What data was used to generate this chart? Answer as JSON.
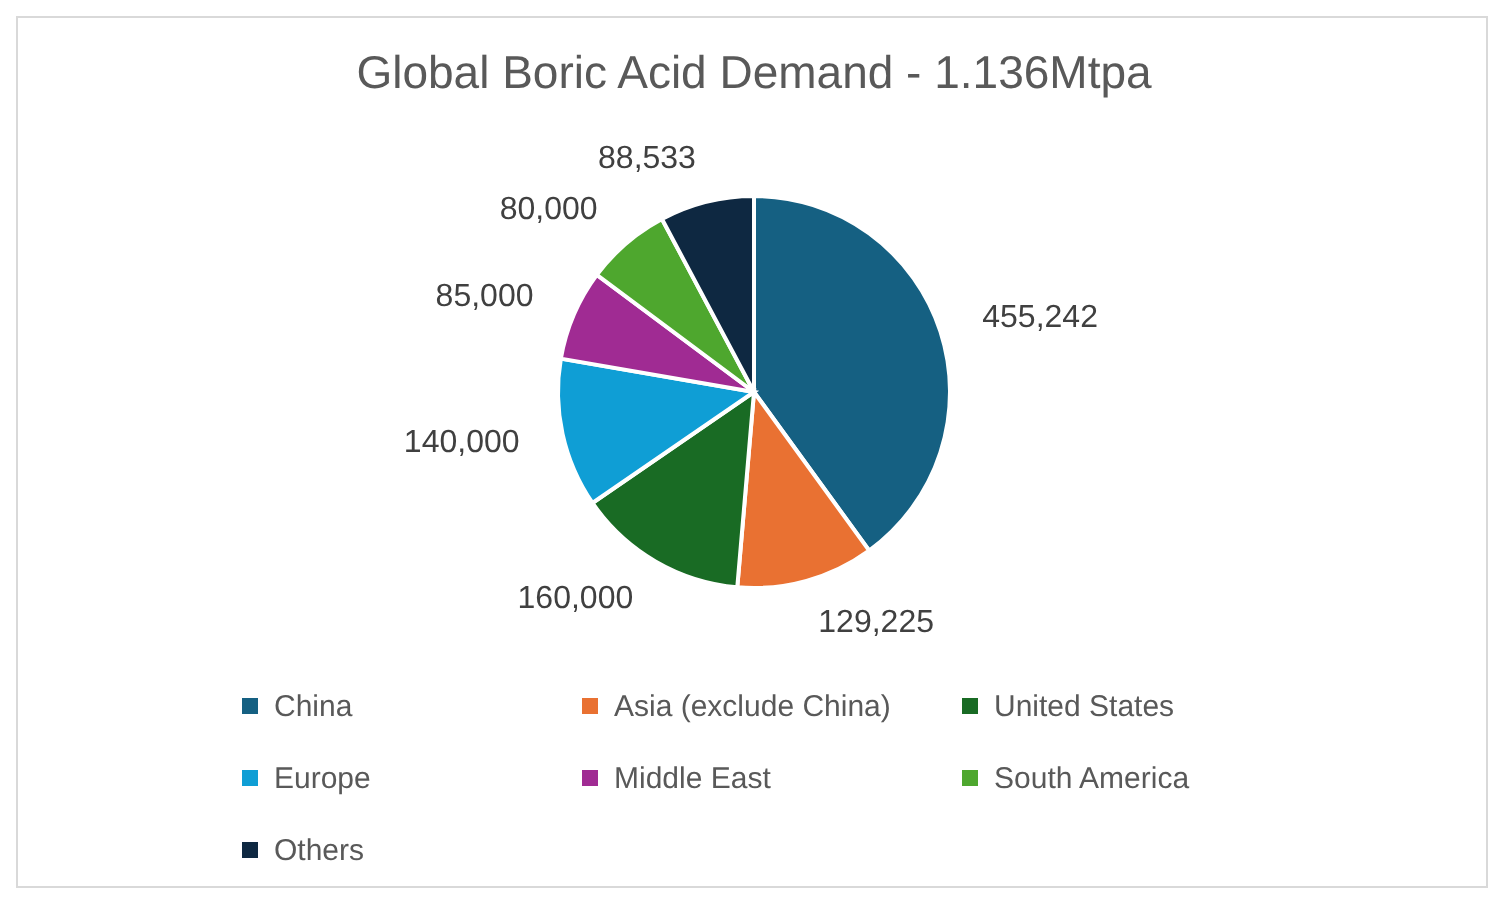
{
  "chart_data": {
    "type": "pie",
    "title": "Global Boric Acid Demand - 1.136Mtpa",
    "categories": [
      "China",
      "Asia (exclude China)",
      "United States",
      "Europe",
      "Middle East",
      "South America",
      "Others"
    ],
    "values": [
      455242,
      129225,
      160000,
      140000,
      85000,
      80000,
      88533
    ],
    "colors": [
      "#156082",
      "#e97132",
      "#196b24",
      "#0f9ed5",
      "#a02b93",
      "#4ea72e",
      "#0e2841"
    ],
    "value_labels": [
      "455,242",
      "129,225",
      "160,000",
      "140,000",
      "85,000",
      "80,000",
      "88,533"
    ],
    "legend": "bottom"
  }
}
